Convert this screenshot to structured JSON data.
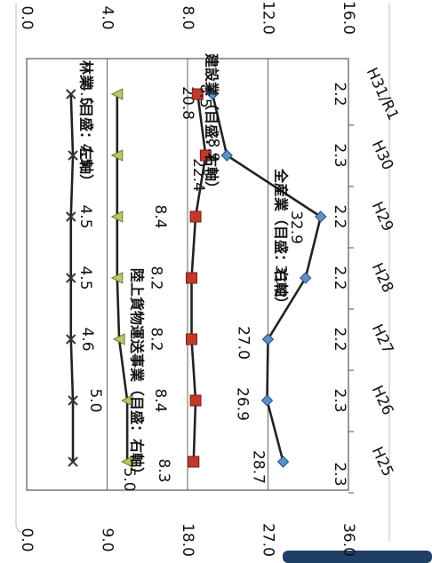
{
  "chart_data": {
    "type": "line",
    "orientation": "rotated-90-clockwise",
    "categories": [
      "H25",
      "H26",
      "H27",
      "H28",
      "H29",
      "H30",
      "H31/R1"
    ],
    "left_axis": {
      "ticks": [
        "0.0",
        "9.0",
        "18.0",
        "27.0",
        "36.0"
      ],
      "range": [
        0,
        36
      ]
    },
    "right_axis": {
      "ticks": [
        "0.0",
        "4.0",
        "8.0",
        "12.0",
        "16.0"
      ],
      "range": [
        0,
        16
      ]
    },
    "grid": true,
    "series": [
      {
        "name": "林業（目盛：左軸）",
        "axis": "left",
        "marker": "diamond",
        "color": "#5b8fc9",
        "values": [
          28.7,
          26.9,
          27.0,
          31.2,
          32.9,
          22.4,
          20.8
        ],
        "labels": [
          "28.7",
          "26.9",
          "27.0",
          "31.2",
          "32.9",
          "22.4",
          "20.8"
        ]
      },
      {
        "name": "陸上貨物運送事業（目盛：右軸）",
        "axis": "right",
        "marker": "square",
        "color": "#c0392b",
        "values": [
          8.3,
          8.4,
          8.2,
          8.2,
          8.4,
          8.9,
          8.5
        ],
        "labels": [
          "8.3",
          "8.4",
          "8.2",
          "8.2",
          "8.4",
          "8.9",
          "8.5"
        ]
      },
      {
        "name": "建設業（目盛：右軸）",
        "axis": "right",
        "marker": "triangle",
        "color": "#b5c96a",
        "values": [
          5.0,
          5.0,
          4.6,
          4.5,
          4.5,
          4.5,
          4.5
        ],
        "labels": [
          "5.0",
          "5.0",
          "4.6",
          "4.5",
          "4.5",
          "4.5",
          "4.5"
        ]
      },
      {
        "name": "全産業（目盛：右軸）",
        "axis": "right",
        "marker": "x",
        "color": "#333333",
        "values": [
          2.3,
          2.3,
          2.2,
          2.2,
          2.2,
          2.3,
          2.2
        ],
        "labels": [
          "2.3",
          "2.3",
          "2.2",
          "2.2",
          "2.2",
          "2.3",
          "2.2"
        ]
      }
    ]
  }
}
